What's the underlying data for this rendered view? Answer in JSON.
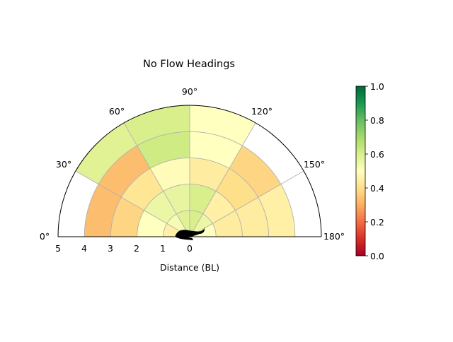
{
  "chart_data": {
    "type": "heatmap",
    "title": "No Flow Headings",
    "xlabel": "Distance (BL)",
    "radial_ticks": [
      "5",
      "4",
      "3",
      "2",
      "1",
      "0"
    ],
    "angle_ticks": [
      "0°",
      "30°",
      "60°",
      "90°",
      "120°",
      "150°",
      "180°"
    ],
    "rmax": 5,
    "angle_range_deg": [
      0,
      180
    ],
    "sector_width_deg": 30,
    "ring_width": 1,
    "grid": true,
    "colormap": "RdYlGn",
    "colorbar": {
      "ticks": [
        "0.0",
        "0.2",
        "0.4",
        "0.6",
        "0.8",
        "1.0"
      ],
      "range": [
        0,
        1
      ],
      "placement": "right"
    },
    "cells": [
      {
        "theta": [
          0,
          30
        ],
        "r": [
          0,
          1
        ],
        "value": 0.45
      },
      {
        "theta": [
          0,
          30
        ],
        "r": [
          1,
          2
        ],
        "value": 0.5
      },
      {
        "theta": [
          0,
          30
        ],
        "r": [
          2,
          3
        ],
        "value": 0.38
      },
      {
        "theta": [
          0,
          30
        ],
        "r": [
          3,
          4
        ],
        "value": 0.33
      },
      {
        "theta": [
          30,
          60
        ],
        "r": [
          0,
          1
        ],
        "value": 0.52
      },
      {
        "theta": [
          30,
          60
        ],
        "r": [
          1,
          2
        ],
        "value": 0.55
      },
      {
        "theta": [
          30,
          60
        ],
        "r": [
          2,
          3
        ],
        "value": 0.42
      },
      {
        "theta": [
          30,
          60
        ],
        "r": [
          3,
          4
        ],
        "value": 0.33
      },
      {
        "theta": [
          30,
          60
        ],
        "r": [
          4,
          5
        ],
        "value": 0.58
      },
      {
        "theta": [
          60,
          90
        ],
        "r": [
          0,
          1
        ],
        "value": 0.58
      },
      {
        "theta": [
          60,
          90
        ],
        "r": [
          1,
          2
        ],
        "value": 0.56
      },
      {
        "theta": [
          60,
          90
        ],
        "r": [
          2,
          3
        ],
        "value": 0.49
      },
      {
        "theta": [
          60,
          90
        ],
        "r": [
          3,
          4
        ],
        "value": 0.62
      },
      {
        "theta": [
          60,
          90
        ],
        "r": [
          4,
          5
        ],
        "value": 0.6
      },
      {
        "theta": [
          90,
          120
        ],
        "r": [
          0,
          1
        ],
        "value": 0.6
      },
      {
        "theta": [
          90,
          120
        ],
        "r": [
          1,
          2
        ],
        "value": 0.6
      },
      {
        "theta": [
          90,
          120
        ],
        "r": [
          2,
          3
        ],
        "value": 0.44
      },
      {
        "theta": [
          90,
          120
        ],
        "r": [
          3,
          4
        ],
        "value": 0.5
      },
      {
        "theta": [
          90,
          120
        ],
        "r": [
          4,
          5
        ],
        "value": 0.5
      },
      {
        "theta": [
          120,
          150
        ],
        "r": [
          0,
          1
        ],
        "value": 0.55
      },
      {
        "theta": [
          120,
          150
        ],
        "r": [
          1,
          2
        ],
        "value": 0.45
      },
      {
        "theta": [
          120,
          150
        ],
        "r": [
          2,
          3
        ],
        "value": 0.4
      },
      {
        "theta": [
          120,
          150
        ],
        "r": [
          3,
          4
        ],
        "value": 0.38
      },
      {
        "theta": [
          150,
          180
        ],
        "r": [
          0,
          1
        ],
        "value": 0.5
      },
      {
        "theta": [
          150,
          180
        ],
        "r": [
          1,
          2
        ],
        "value": 0.44
      },
      {
        "theta": [
          150,
          180
        ],
        "r": [
          2,
          3
        ],
        "value": 0.44
      },
      {
        "theta": [
          150,
          180
        ],
        "r": [
          3,
          4
        ],
        "value": 0.45
      }
    ]
  }
}
